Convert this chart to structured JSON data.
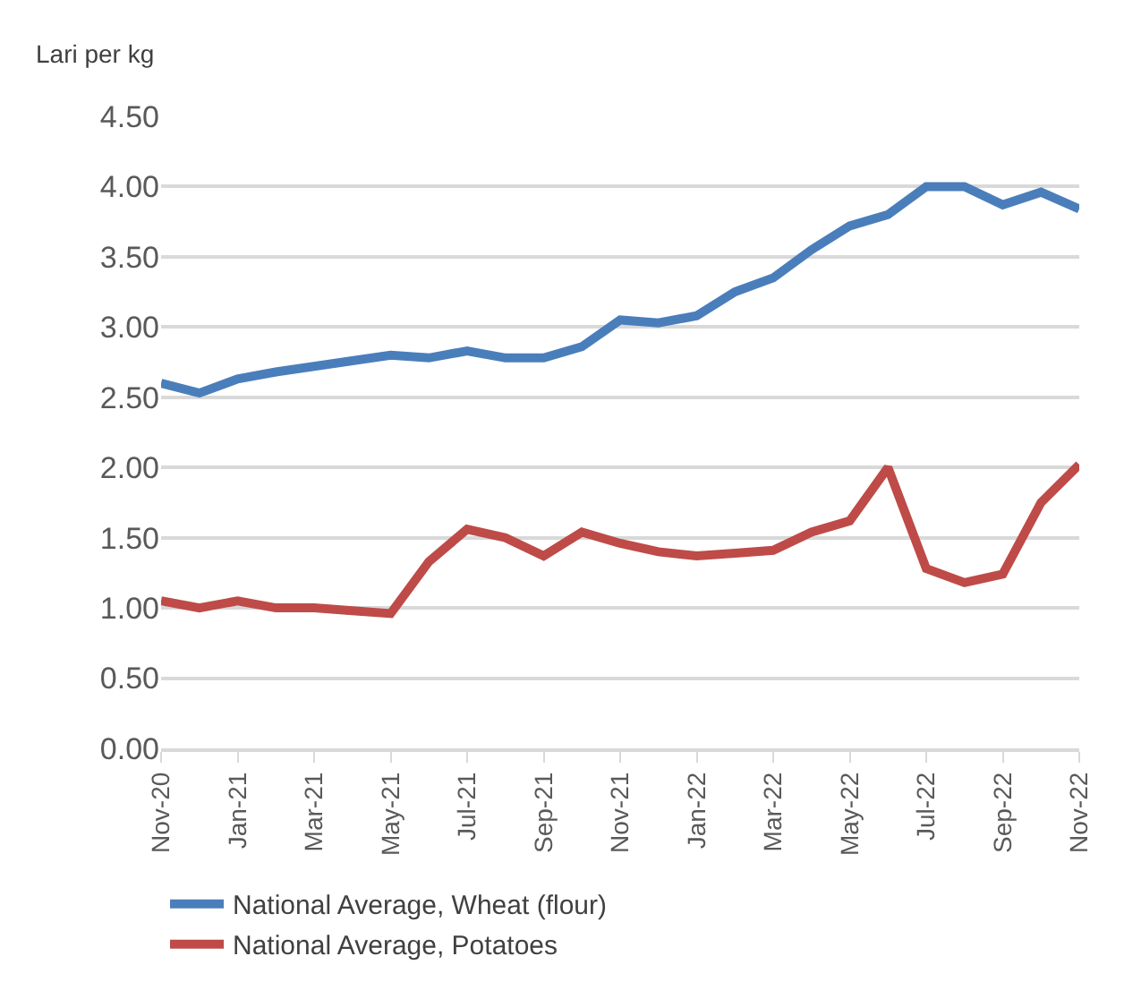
{
  "chart_data": {
    "type": "line",
    "ylabel": "Lari per kg",
    "categories": [
      "Nov-20",
      null,
      "Jan-21",
      null,
      "Mar-21",
      null,
      "May-21",
      null,
      "Jul-21",
      null,
      "Sep-21",
      null,
      "Nov-21",
      null,
      "Jan-22",
      null,
      "Mar-22",
      null,
      "May-22",
      null,
      "Jul-22",
      null,
      "Sep-22",
      null,
      "Nov-22"
    ],
    "series": [
      {
        "name": "National Average, Wheat (flour)",
        "color": "#4a7ebb",
        "values": [
          2.6,
          2.53,
          2.63,
          2.68,
          2.72,
          2.76,
          2.8,
          2.78,
          2.83,
          2.78,
          2.78,
          2.86,
          3.05,
          3.03,
          3.08,
          3.25,
          3.35,
          3.55,
          3.72,
          3.8,
          4.0,
          4.0,
          3.87,
          3.96,
          3.84
        ]
      },
      {
        "name": "National Average, Potatoes",
        "color": "#be4b48",
        "values": [
          1.05,
          1.0,
          1.05,
          1.0,
          1.0,
          0.98,
          0.96,
          1.33,
          1.56,
          1.5,
          1.37,
          1.54,
          1.46,
          1.4,
          1.37,
          1.39,
          1.41,
          1.54,
          1.62,
          2.0,
          1.28,
          1.18,
          1.24,
          1.75,
          2.02
        ]
      }
    ],
    "ylim": [
      0,
      4.5
    ],
    "yticks": [
      {
        "value": 0,
        "label": "0.00"
      },
      {
        "value": 0.5,
        "label": "0.50"
      },
      {
        "value": 1,
        "label": "1.00"
      },
      {
        "value": 1.5,
        "label": "1.50"
      },
      {
        "value": 2,
        "label": "2.00"
      },
      {
        "value": 2.5,
        "label": "2.50"
      },
      {
        "value": 3,
        "label": "3.00"
      },
      {
        "value": 3.5,
        "label": "3.50"
      },
      {
        "value": 4,
        "label": "4.00"
      },
      {
        "value": 4.5,
        "label": "4.50"
      }
    ],
    "grid": "y",
    "legend": "bottom",
    "marker": "none",
    "line_style": "solid"
  }
}
